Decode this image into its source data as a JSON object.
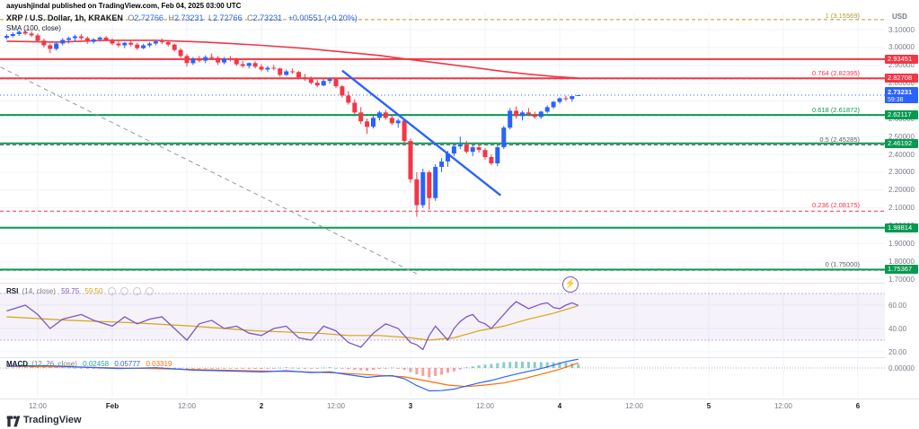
{
  "top_bar": {
    "publisher": "aayushjindal published on TradingView.com, Feb 04, 2025 03:00 UTC"
  },
  "legend": {
    "symbol": "XRP / U.S. Dollar, 1h, KRAKEN",
    "ohlc": {
      "o_label": "O",
      "o": "2.72766",
      "h_label": "H",
      "h": "2.73231",
      "l_label": "L",
      "l": "2.72766",
      "c_label": "C",
      "c": "2.73231",
      "change": "+0.00551 (+0.20%)"
    },
    "sma": "SMA (100, close)"
  },
  "price_axis": {
    "currency": "USD",
    "ticks": [
      3.1,
      3.0,
      2.9,
      2.8,
      2.7,
      2.6,
      2.5,
      2.4,
      2.3,
      2.2,
      2.1,
      2.0,
      1.9,
      1.8,
      1.7
    ],
    "tick_labels": [
      "3.10000",
      "3.00000",
      "2.90000",
      "2.80000",
      "2.70000",
      "2.60000",
      "2.50000",
      "2.40000",
      "2.30000",
      "2.20000",
      "2.10000",
      "2.00000",
      "1.90000",
      "1.80000",
      "1.70000"
    ],
    "badges": [
      {
        "price": 2.93451,
        "label": "2.93451",
        "color": "#f23645"
      },
      {
        "price": 2.82708,
        "label": "2.82708",
        "color": "#f23645"
      },
      {
        "price": 2.62117,
        "label": "2.62117",
        "color": "#089950"
      },
      {
        "price": 2.46192,
        "label": "2.46192",
        "color": "#089950"
      },
      {
        "price": 1.98814,
        "label": "1.98814",
        "color": "#089950"
      },
      {
        "price": 1.75367,
        "label": "1.75367",
        "color": "#089950"
      }
    ],
    "current": {
      "price": 2.73231,
      "label": "2.73231",
      "countdown": "59:38",
      "color": "#2962ff"
    },
    "rsi_ticks": [
      {
        "v": 60,
        "label": "60.00"
      },
      {
        "v": 40,
        "label": "40.00"
      },
      {
        "v": 20,
        "label": "20.00"
      }
    ],
    "macd_ticks": [
      {
        "v": 0,
        "label": "0.00000"
      }
    ]
  },
  "time_axis": {
    "labels": [
      "12:00",
      "Feb",
      "12:00",
      "2",
      "12:00",
      "3",
      "12:00",
      "4",
      "12:00",
      "5",
      "12:00",
      "6"
    ]
  },
  "rsi_legend": {
    "title": "RSI",
    "params": "(14, close)",
    "value1": "59.75",
    "value2": "59.50"
  },
  "macd_legend": {
    "title": "MACD",
    "params": "(12, 26, close)",
    "hist": "0.02458",
    "macd": "0.05777",
    "signal": "0.03319"
  },
  "footer": {
    "brand": "TradingView"
  },
  "lightning_glyph": "⚡",
  "colors": {
    "up": "#2962ff",
    "down": "#f23645",
    "sma": "#f23645",
    "rsi": "#7e57c2",
    "rsi_ma": "#d8a512",
    "macd": "#2962ff",
    "signal": "#ff6d00",
    "hist_pos": "#26a69a",
    "hist_neg": "#ef5350",
    "grid": "#f0f3fa",
    "axis_text": "#787b86",
    "level_red": "#f23645",
    "level_green": "#089950",
    "fib_gray": "#5d606b",
    "fib_yellow": "#b59b2e",
    "trendline": "#2962ff",
    "dashed_gray": "#9598a1"
  },
  "chart_data": {
    "type": "candlestick",
    "symbol": "XRP/USD",
    "interval": "1h",
    "exchange": "KRAKEN",
    "price_range": [
      1.7,
      3.1
    ],
    "candles": [
      [
        3.055,
        3.075,
        3.045,
        3.065
      ],
      [
        3.065,
        3.085,
        3.055,
        3.075
      ],
      [
        3.075,
        3.096,
        3.065,
        3.088
      ],
      [
        3.088,
        3.098,
        3.07,
        3.078
      ],
      [
        3.078,
        3.09,
        3.058,
        3.068
      ],
      [
        3.068,
        3.078,
        3.028,
        3.038
      ],
      [
        3.038,
        3.05,
        3.0,
        3.012
      ],
      [
        3.012,
        3.022,
        2.968,
        2.992
      ],
      [
        2.992,
        3.032,
        2.982,
        3.022
      ],
      [
        3.022,
        3.052,
        3.012,
        3.042
      ],
      [
        3.042,
        3.06,
        3.022,
        3.052
      ],
      [
        3.052,
        3.072,
        3.032,
        3.062
      ],
      [
        3.062,
        3.075,
        3.042,
        3.052
      ],
      [
        3.052,
        3.062,
        3.02,
        3.032
      ],
      [
        3.032,
        3.052,
        3.022,
        3.045
      ],
      [
        3.045,
        3.062,
        3.032,
        3.055
      ],
      [
        3.055,
        3.065,
        3.035,
        3.042
      ],
      [
        3.042,
        3.052,
        3.012,
        3.022
      ],
      [
        3.022,
        3.036,
        3.002,
        3.012
      ],
      [
        3.012,
        3.032,
        2.996,
        3.026
      ],
      [
        3.026,
        3.04,
        3.006,
        3.016
      ],
      [
        3.016,
        3.026,
        2.986,
        2.996
      ],
      [
        2.996,
        3.02,
        2.99,
        3.012
      ],
      [
        3.012,
        3.03,
        3.002,
        3.022
      ],
      [
        3.022,
        3.04,
        3.012,
        3.034
      ],
      [
        3.034,
        3.05,
        3.02,
        3.03
      ],
      [
        3.03,
        3.04,
        3.006,
        3.016
      ],
      [
        3.016,
        3.022,
        2.976,
        2.986
      ],
      [
        2.986,
        2.996,
        2.942,
        2.952
      ],
      [
        2.952,
        2.962,
        2.892,
        2.912
      ],
      [
        2.912,
        2.946,
        2.902,
        2.936
      ],
      [
        2.936,
        2.952,
        2.916,
        2.926
      ],
      [
        2.926,
        2.956,
        2.912,
        2.946
      ],
      [
        2.946,
        2.966,
        2.932,
        2.942
      ],
      [
        2.942,
        2.952,
        2.902,
        2.916
      ],
      [
        2.916,
        2.946,
        2.906,
        2.936
      ],
      [
        2.936,
        2.952,
        2.922,
        2.932
      ],
      [
        2.932,
        2.942,
        2.896,
        2.906
      ],
      [
        2.906,
        2.926,
        2.886,
        2.896
      ],
      [
        2.896,
        2.916,
        2.882,
        2.912
      ],
      [
        2.912,
        2.922,
        2.882,
        2.892
      ],
      [
        2.892,
        2.906,
        2.866,
        2.876
      ],
      [
        2.876,
        2.896,
        2.862,
        2.886
      ],
      [
        2.886,
        2.902,
        2.872,
        2.882
      ],
      [
        2.882,
        2.887,
        2.836,
        2.846
      ],
      [
        2.846,
        2.876,
        2.841,
        2.866
      ],
      [
        2.866,
        2.882,
        2.852,
        2.862
      ],
      [
        2.862,
        2.867,
        2.822,
        2.832
      ],
      [
        2.832,
        2.852,
        2.812,
        2.822
      ],
      [
        2.822,
        2.837,
        2.792,
        2.802
      ],
      [
        2.802,
        2.817,
        2.777,
        2.787
      ],
      [
        2.787,
        2.822,
        2.782,
        2.812
      ],
      [
        2.812,
        2.832,
        2.797,
        2.822
      ],
      [
        2.822,
        2.827,
        2.772,
        2.782
      ],
      [
        2.782,
        2.79,
        2.72,
        2.73
      ],
      [
        2.73,
        2.755,
        2.68,
        2.69
      ],
      [
        2.69,
        2.71,
        2.625,
        2.635
      ],
      [
        2.635,
        2.665,
        2.57,
        2.585
      ],
      [
        2.585,
        2.6,
        2.515,
        2.555
      ],
      [
        2.555,
        2.615,
        2.545,
        2.605
      ],
      [
        2.605,
        2.645,
        2.59,
        2.635
      ],
      [
        2.635,
        2.65,
        2.595,
        2.605
      ],
      [
        2.605,
        2.625,
        2.565,
        2.575
      ],
      [
        2.575,
        2.6,
        2.55,
        2.59
      ],
      [
        2.59,
        2.595,
        2.46,
        2.475
      ],
      [
        2.475,
        2.49,
        2.24,
        2.26
      ],
      [
        2.26,
        2.3,
        2.05,
        2.115
      ],
      [
        2.115,
        2.32,
        2.1,
        2.3
      ],
      [
        2.3,
        2.31,
        2.09,
        2.155
      ],
      [
        2.155,
        2.345,
        2.14,
        2.33
      ],
      [
        2.33,
        2.38,
        2.3,
        2.36
      ],
      [
        2.36,
        2.42,
        2.33,
        2.405
      ],
      [
        2.405,
        2.465,
        2.39,
        2.445
      ],
      [
        2.445,
        2.5,
        2.43,
        2.455
      ],
      [
        2.455,
        2.475,
        2.405,
        2.415
      ],
      [
        2.415,
        2.45,
        2.39,
        2.44
      ],
      [
        2.44,
        2.455,
        2.41,
        2.425
      ],
      [
        2.425,
        2.435,
        2.37,
        2.385
      ],
      [
        2.385,
        2.4,
        2.34,
        2.35
      ],
      [
        2.35,
        2.45,
        2.335,
        2.44
      ],
      [
        2.44,
        2.56,
        2.43,
        2.55
      ],
      [
        2.55,
        2.66,
        2.54,
        2.645
      ],
      [
        2.645,
        2.67,
        2.6,
        2.615
      ],
      [
        2.615,
        2.645,
        2.59,
        2.635
      ],
      [
        2.635,
        2.66,
        2.615,
        2.625
      ],
      [
        2.625,
        2.64,
        2.6,
        2.61
      ],
      [
        2.61,
        2.645,
        2.6,
        2.64
      ],
      [
        2.64,
        2.675,
        2.63,
        2.665
      ],
      [
        2.665,
        2.7,
        2.655,
        2.695
      ],
      [
        2.695,
        2.72,
        2.685,
        2.715
      ],
      [
        2.715,
        2.73,
        2.7,
        2.71
      ],
      [
        2.71,
        2.72,
        2.695,
        2.7268
      ],
      [
        2.72766,
        2.73231,
        2.72766,
        2.73231
      ]
    ],
    "sma100": [
      [
        0,
        3.035
      ],
      [
        8,
        3.03
      ],
      [
        16,
        3.04
      ],
      [
        24,
        3.04
      ],
      [
        32,
        3.03
      ],
      [
        41,
        3.012
      ],
      [
        48,
        2.995
      ],
      [
        54,
        2.975
      ],
      [
        60,
        2.955
      ],
      [
        65,
        2.932
      ],
      [
        70,
        2.91
      ],
      [
        75,
        2.888
      ],
      [
        80,
        2.865
      ],
      [
        84,
        2.85
      ],
      [
        88,
        2.837
      ],
      [
        92,
        2.828
      ]
    ],
    "levels": [
      {
        "price": 2.93451,
        "color": "#f23645"
      },
      {
        "price": 2.82708,
        "color": "#f23645"
      },
      {
        "price": 2.62117,
        "color": "#089950"
      },
      {
        "price": 2.46192,
        "color": "#089950"
      },
      {
        "price": 1.98814,
        "color": "#089950"
      },
      {
        "price": 1.75367,
        "color": "#089950"
      }
    ],
    "fib_levels": [
      {
        "ratio": "1",
        "price": 3.15569,
        "label": "1 (3.15569)",
        "color": "#b59b2e"
      },
      {
        "ratio": "0.764",
        "price": 2.82395,
        "label": "0.764 (2.82395)",
        "color": "#f23645"
      },
      {
        "ratio": "0.618",
        "price": 2.61872,
        "label": "0.618 (2.61872)",
        "color": "#089950"
      },
      {
        "ratio": "0.5",
        "price": 2.45285,
        "label": "0.5 (2.45285)",
        "color": "#5d606b"
      },
      {
        "ratio": "0.236",
        "price": 2.08175,
        "label": "0.236 (2.08175)",
        "color": "#f23645"
      },
      {
        "ratio": "0",
        "price": 1.75,
        "label": "0 (1.75000)",
        "color": "#5d606b"
      }
    ],
    "current_price": 2.73231,
    "trendline": {
      "from": [
        54,
        2.87
      ],
      "to": [
        79.5,
        2.17
      ]
    },
    "gray_dashed": {
      "from": [
        -1,
        2.89
      ],
      "to": [
        66,
        1.73
      ]
    },
    "rsi": {
      "band": [
        30,
        70
      ],
      "points": [
        [
          0,
          55
        ],
        [
          3,
          60
        ],
        [
          5,
          52
        ],
        [
          7,
          40
        ],
        [
          9,
          48
        ],
        [
          12,
          52
        ],
        [
          14,
          47
        ],
        [
          17,
          42
        ],
        [
          19,
          50
        ],
        [
          21,
          44
        ],
        [
          23,
          48
        ],
        [
          25,
          50
        ],
        [
          27,
          40
        ],
        [
          29,
          30
        ],
        [
          31,
          44
        ],
        [
          33,
          47
        ],
        [
          35,
          40
        ],
        [
          37,
          42
        ],
        [
          39,
          36
        ],
        [
          41,
          34
        ],
        [
          43,
          40
        ],
        [
          45,
          42
        ],
        [
          47,
          32
        ],
        [
          49,
          30
        ],
        [
          51,
          42
        ],
        [
          53,
          38
        ],
        [
          55,
          28
        ],
        [
          57,
          24
        ],
        [
          59,
          36
        ],
        [
          61,
          44
        ],
        [
          63,
          40
        ],
        [
          64,
          34
        ],
        [
          65,
          28
        ],
        [
          66,
          26
        ],
        [
          67,
          22
        ],
        [
          68,
          34
        ],
        [
          69,
          42
        ],
        [
          70,
          36
        ],
        [
          71,
          30
        ],
        [
          72,
          40
        ],
        [
          73,
          46
        ],
        [
          74,
          50
        ],
        [
          75,
          52
        ],
        [
          76,
          46
        ],
        [
          77,
          44
        ],
        [
          78,
          40
        ],
        [
          79,
          46
        ],
        [
          80,
          52
        ],
        [
          81,
          58
        ],
        [
          82,
          63
        ],
        [
          83,
          60
        ],
        [
          84,
          57
        ],
        [
          85,
          59
        ],
        [
          86,
          61
        ],
        [
          87,
          62
        ],
        [
          88,
          58
        ],
        [
          89,
          57
        ],
        [
          90,
          60
        ],
        [
          91,
          62
        ],
        [
          92,
          59.75
        ]
      ],
      "ma": [
        [
          0,
          50
        ],
        [
          10,
          47
        ],
        [
          20,
          45
        ],
        [
          30,
          42
        ],
        [
          40,
          38
        ],
        [
          50,
          36
        ],
        [
          55,
          34
        ],
        [
          60,
          34
        ],
        [
          65,
          32
        ],
        [
          68,
          30
        ],
        [
          72,
          32
        ],
        [
          76,
          38
        ],
        [
          80,
          42
        ],
        [
          84,
          48
        ],
        [
          88,
          53
        ],
        [
          92,
          59.5
        ]
      ]
    },
    "macd": {
      "macd": [
        [
          0,
          0.012
        ],
        [
          6,
          0.016
        ],
        [
          12,
          0.006
        ],
        [
          18,
          -0.004
        ],
        [
          24,
          0.002
        ],
        [
          30,
          -0.014
        ],
        [
          36,
          -0.02
        ],
        [
          41,
          -0.026
        ],
        [
          45,
          -0.018
        ],
        [
          49,
          -0.03
        ],
        [
          52,
          -0.026
        ],
        [
          55,
          -0.044
        ],
        [
          58,
          -0.062
        ],
        [
          60,
          -0.054
        ],
        [
          62,
          -0.05
        ],
        [
          64,
          -0.07
        ],
        [
          66,
          -0.115
        ],
        [
          68,
          -0.15
        ],
        [
          70,
          -0.148
        ],
        [
          72,
          -0.138
        ],
        [
          74,
          -0.118
        ],
        [
          76,
          -0.098
        ],
        [
          78,
          -0.082
        ],
        [
          80,
          -0.06
        ],
        [
          82,
          -0.04
        ],
        [
          84,
          -0.022
        ],
        [
          86,
          -0.004
        ],
        [
          88,
          0.018
        ],
        [
          90,
          0.042
        ],
        [
          92,
          0.05777
        ]
      ],
      "signal": [
        [
          0,
          0.01
        ],
        [
          10,
          0.007
        ],
        [
          20,
          -0.001
        ],
        [
          30,
          -0.01
        ],
        [
          40,
          -0.019
        ],
        [
          48,
          -0.025
        ],
        [
          54,
          -0.034
        ],
        [
          60,
          -0.048
        ],
        [
          64,
          -0.058
        ],
        [
          68,
          -0.088
        ],
        [
          71,
          -0.112
        ],
        [
          74,
          -0.122
        ],
        [
          77,
          -0.112
        ],
        [
          80,
          -0.098
        ],
        [
          83,
          -0.072
        ],
        [
          86,
          -0.042
        ],
        [
          89,
          -0.008
        ],
        [
          92,
          0.03319
        ]
      ]
    }
  }
}
